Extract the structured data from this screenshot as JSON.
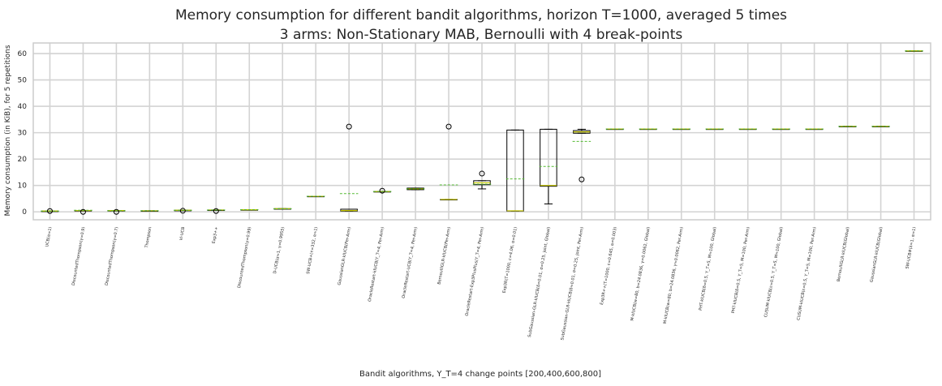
{
  "chart_data": {
    "type": "box",
    "title": "Memory consumption for different bandit algorithms, horizon T=1000, averaged 5 times",
    "subtitle": "3 arms: Non-Stationary MAB, Bernoulli with 4 break-points",
    "xlabel": "Bandit algorithms, Υ_T=4 change points [200,400,600,800]",
    "ylabel": "Memory consumption (in KiB), for 5 repetitions",
    "ylim": [
      -3,
      64
    ],
    "yticks": [
      0,
      10,
      20,
      30,
      40,
      50,
      60
    ],
    "grid": true,
    "categories": [
      "UCB(α=1)",
      "DiscountedThompson(γ=0.9)",
      "DiscountedThompson(γ=0.7)",
      "Thompson",
      "kl-UCB",
      "Exp3++",
      "DiscountedThompson(γ=0.99)",
      "D-UCB(α=1, γ=0.9955)",
      "SW-UCB+(τ=332, α=1)",
      "GaussianGLR-klUCB(Per-Arm)",
      "OracleRestart-klUCB(Υ_T=4, Per-Arm)",
      "OracleRestart-UCB(Υ_T=4, Per-Arm)",
      "BernoulliGLR-klUCB(Per-Arm)",
      "OracleRestart-Exp3PlusPlus(Υ_T=4, Per-Arm)",
      "Exp3R(T=1000, c=4.06, α=0.01)",
      "SubGaussian-GLR-klUCB(δ=0.01, σ=0.25, joint, Global)",
      "SubGaussian-GLR-klUCB(δ=0.01, σ=0.25, joint, Per-Arm)",
      "Exp3R++(T=1000, c=0.645, α=0.003)",
      "M-klUCB(w=80, b=24.0836, γ=0.0062, Global)",
      "M-klUCB(w=80, b=24.0836, γ=0.0062, Per-Arm)",
      "PHT-klUCB(δ=0.5, Υ_T=5, M=100, Global)",
      "PHT-klUCB(δ=0.5, Υ_T=5, M=100, Per-Arm)",
      "CUSUM-klUCB(ε=0.5, Υ_T=5, M=100, Global)",
      "CUSUM-klUCB(ε=0.5, Υ_T=5, M=100, Per-Arm)",
      "BernoulliGLR-klUCB(Global)",
      "GaussianGLR-klUCB(Global)",
      "SW-UCB#(λ=1, α=1)"
    ],
    "boxes": [
      {
        "q1": 0.3,
        "median": 0.3,
        "q3": 0.3,
        "whislo": 0.3,
        "whishi": 0.3,
        "mean": 0.3,
        "fliers": [
          0.3
        ]
      },
      {
        "q1": 0.5,
        "median": 0.5,
        "q3": 0.5,
        "whislo": 0.5,
        "whishi": 0.5,
        "mean": 0.6,
        "fliers": [
          0.0
        ]
      },
      {
        "q1": 0.5,
        "median": 0.5,
        "q3": 0.5,
        "whislo": 0.5,
        "whishi": 0.5,
        "mean": 0.4,
        "fliers": [
          0.0
        ]
      },
      {
        "q1": 0.4,
        "median": 0.4,
        "q3": 0.4,
        "whislo": 0.4,
        "whishi": 0.4,
        "mean": 0.4,
        "fliers": []
      },
      {
        "q1": 0.6,
        "median": 0.6,
        "q3": 0.6,
        "whislo": 0.6,
        "whishi": 0.6,
        "mean": 0.6,
        "fliers": [
          0.4
        ]
      },
      {
        "q1": 0.7,
        "median": 0.7,
        "q3": 0.7,
        "whislo": 0.7,
        "whishi": 0.7,
        "mean": 0.7,
        "fliers": [
          0.3
        ]
      },
      {
        "q1": 0.8,
        "median": 0.8,
        "q3": 0.8,
        "whislo": 0.8,
        "whishi": 0.8,
        "mean": 0.8,
        "fliers": []
      },
      {
        "q1": 1.2,
        "median": 1.2,
        "q3": 1.2,
        "whislo": 1.2,
        "whishi": 1.2,
        "mean": 1.2,
        "fliers": []
      },
      {
        "q1": 5.9,
        "median": 5.9,
        "q3": 5.9,
        "whislo": 5.9,
        "whishi": 5.9,
        "mean": 5.9,
        "fliers": []
      },
      {
        "q1": 0.3,
        "median": 0.5,
        "q3": 1.0,
        "whislo": 0.3,
        "whishi": 1.0,
        "mean": 6.9,
        "fliers": [
          32.3
        ]
      },
      {
        "q1": 7.7,
        "median": 7.7,
        "q3": 7.7,
        "whislo": 7.7,
        "whishi": 7.7,
        "mean": 7.7,
        "fliers": [
          8.0
        ]
      },
      {
        "q1": 8.4,
        "median": 8.7,
        "q3": 9.0,
        "whislo": 8.4,
        "whishi": 9.0,
        "mean": 8.7,
        "fliers": []
      },
      {
        "q1": 4.7,
        "median": 4.7,
        "q3": 4.7,
        "whislo": 4.7,
        "whishi": 4.7,
        "mean": 10.2,
        "fliers": [
          32.3
        ]
      },
      {
        "q1": 10.3,
        "median": 11.0,
        "q3": 11.8,
        "whislo": 8.7,
        "whishi": 11.8,
        "mean": 10.5,
        "fliers": [
          14.5
        ]
      },
      {
        "q1": 0.3,
        "median": 0.4,
        "q3": 31.0,
        "whislo": 0.3,
        "whishi": 31.0,
        "mean": 12.5,
        "fliers": []
      },
      {
        "q1": 9.7,
        "median": 10.0,
        "q3": 31.3,
        "whislo": 3.0,
        "whishi": 31.3,
        "mean": 17.2,
        "fliers": []
      },
      {
        "q1": 29.8,
        "median": 30.3,
        "q3": 30.8,
        "whislo": 29.8,
        "whishi": 31.3,
        "mean": 26.7,
        "fliers": [
          12.3
        ]
      },
      {
        "q1": 31.4,
        "median": 31.4,
        "q3": 31.4,
        "whislo": 31.4,
        "whishi": 31.4,
        "mean": 31.4,
        "fliers": []
      },
      {
        "q1": 31.4,
        "median": 31.4,
        "q3": 31.4,
        "whislo": 31.4,
        "whishi": 31.4,
        "mean": 31.4,
        "fliers": []
      },
      {
        "q1": 31.4,
        "median": 31.4,
        "q3": 31.4,
        "whislo": 31.4,
        "whishi": 31.4,
        "mean": 31.4,
        "fliers": []
      },
      {
        "q1": 31.4,
        "median": 31.4,
        "q3": 31.4,
        "whislo": 31.4,
        "whishi": 31.4,
        "mean": 31.4,
        "fliers": []
      },
      {
        "q1": 31.4,
        "median": 31.4,
        "q3": 31.4,
        "whislo": 31.4,
        "whishi": 31.4,
        "mean": 31.4,
        "fliers": []
      },
      {
        "q1": 31.4,
        "median": 31.4,
        "q3": 31.4,
        "whislo": 31.4,
        "whishi": 31.4,
        "mean": 31.4,
        "fliers": []
      },
      {
        "q1": 31.4,
        "median": 31.4,
        "q3": 31.4,
        "whislo": 31.4,
        "whishi": 31.4,
        "mean": 31.4,
        "fliers": []
      },
      {
        "q1": 32.4,
        "median": 32.4,
        "q3": 32.4,
        "whislo": 32.4,
        "whishi": 32.4,
        "mean": 32.4,
        "fliers": []
      },
      {
        "q1": 32.4,
        "median": 32.4,
        "q3": 32.4,
        "whislo": 32.4,
        "whishi": 32.4,
        "mean": 32.4,
        "fliers": []
      },
      {
        "q1": 61.0,
        "median": 61.0,
        "q3": 61.0,
        "whislo": 61.0,
        "whishi": 61.0,
        "mean": 61.0,
        "fliers": []
      }
    ],
    "colors": {
      "box": "#000000",
      "median": "#c8c800",
      "mean": "#55bb33",
      "grid": "#d3d3d3",
      "frame": "#cccccc"
    }
  }
}
